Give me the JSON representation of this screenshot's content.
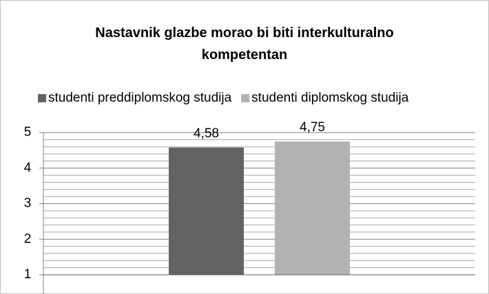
{
  "chart_data": {
    "type": "bar",
    "title": "Nastavnik glazbe morao bi biti interkulturalno kompetentan",
    "categories": [
      null
    ],
    "series": [
      {
        "name": "studenti preddiplomskog studija",
        "color": "#636363",
        "values": [
          4.58
        ],
        "value_labels": [
          "4,58"
        ]
      },
      {
        "name": "studenti diplomskog studija",
        "color": "#b2b2b2",
        "values": [
          4.75
        ],
        "value_labels": [
          "4,75"
        ]
      }
    ],
    "ylim": [
      1,
      5
    ],
    "yticks": [
      1,
      2,
      3,
      4,
      5
    ],
    "yminor": [
      1.2,
      1.4,
      1.6,
      1.8,
      2.2,
      2.4,
      2.6,
      2.8,
      3.2,
      3.4,
      3.6,
      3.8,
      4.2,
      4.4,
      4.6,
      4.8
    ],
    "grid": true,
    "legend": "top"
  }
}
